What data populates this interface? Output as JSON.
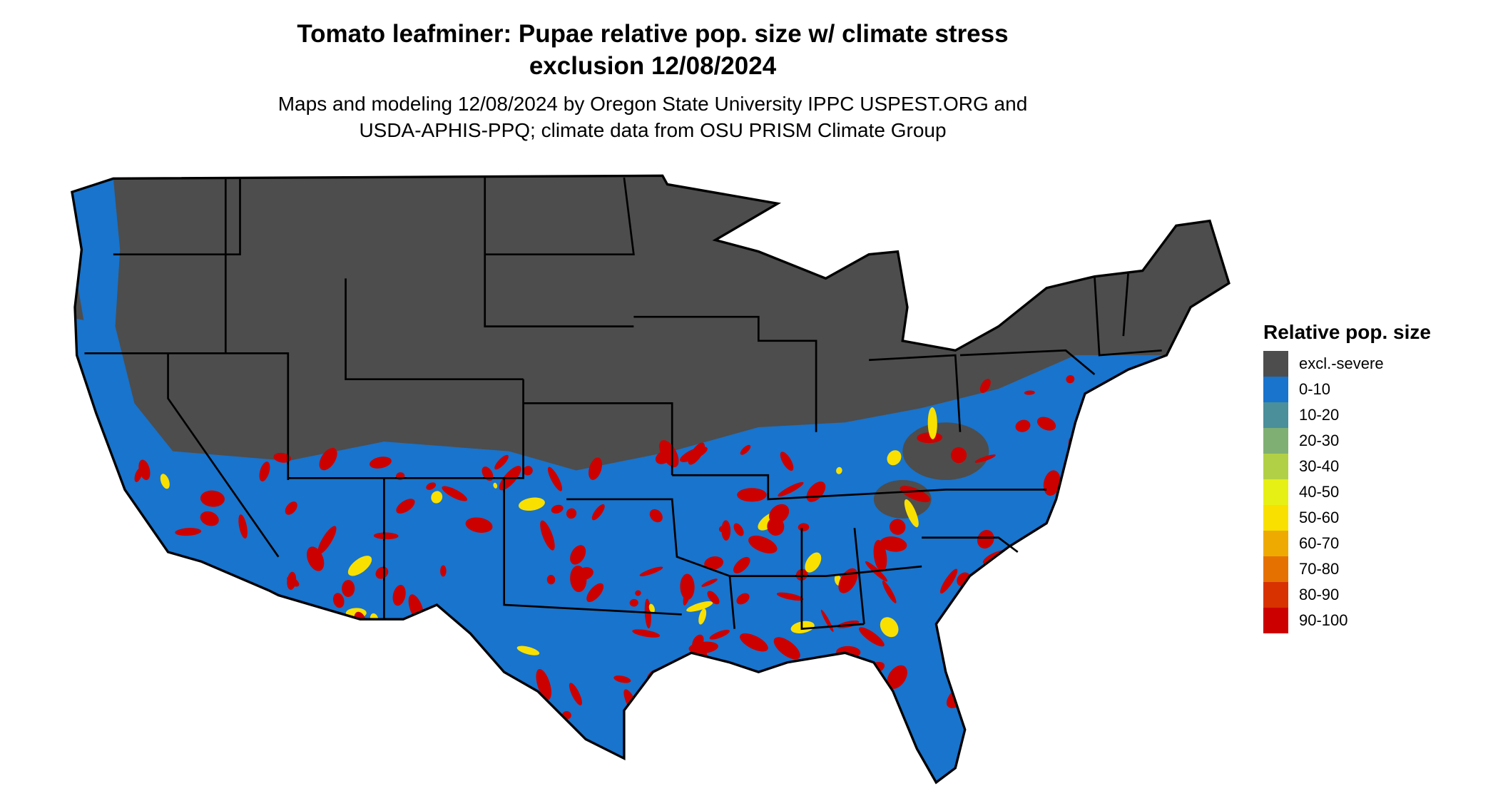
{
  "title": {
    "line1": "Tomato leafminer: Pupae relative pop. size w/ climate stress",
    "line2": "exclusion 12/08/2024"
  },
  "subtitle": {
    "line1": "Maps and modeling 12/08/2024 by Oregon State University IPPC USPEST.ORG and",
    "line2": "USDA-APHIS-PPQ; climate data from OSU PRISM Climate Group"
  },
  "legend": {
    "title": "Relative pop. size",
    "items": [
      {
        "label": "excl.-severe",
        "color": "#4d4d4d"
      },
      {
        "label": "0-10",
        "color": "#1874cd"
      },
      {
        "label": "10-20",
        "color": "#4a8f9a"
      },
      {
        "label": "20-30",
        "color": "#7faf73"
      },
      {
        "label": "30-40",
        "color": "#b2d045"
      },
      {
        "label": "40-50",
        "color": "#e6f014"
      },
      {
        "label": "50-60",
        "color": "#f9e000"
      },
      {
        "label": "60-70",
        "color": "#eeaa00"
      },
      {
        "label": "70-80",
        "color": "#e57100"
      },
      {
        "label": "80-90",
        "color": "#d83200"
      },
      {
        "label": "90-100",
        "color": "#cd0000"
      }
    ]
  }
}
